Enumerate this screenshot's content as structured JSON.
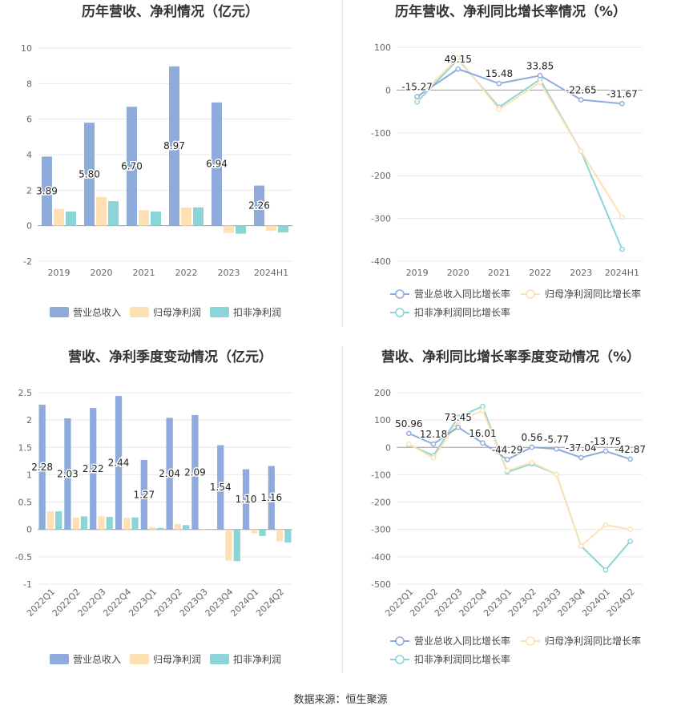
{
  "source_text": "数据来源：恒生聚源",
  "chart_data": [
    {
      "type": "bar",
      "title": "历年营收、净利情况（亿元）",
      "categories": [
        "2019",
        "2020",
        "2021",
        "2022",
        "2023",
        "2024H1"
      ],
      "series": [
        {
          "name": "营业总收入",
          "color": "#8eabdc",
          "values": [
            3.89,
            5.8,
            6.7,
            8.97,
            6.94,
            2.26
          ],
          "labels": [
            "3.89",
            "5.80",
            "6.70",
            "8.97",
            "6.94",
            "2.26"
          ]
        },
        {
          "name": "归母净利润",
          "color": "#fde1b4",
          "values": [
            0.95,
            1.62,
            0.88,
            1.02,
            -0.4,
            -0.28
          ]
        },
        {
          "name": "扣非净利润",
          "color": "#8bd4d8",
          "values": [
            0.8,
            1.38,
            0.8,
            1.03,
            -0.45,
            -0.38
          ]
        }
      ],
      "yticks": [
        "10",
        "8",
        "6",
        "4",
        "2",
        "0",
        "-2"
      ],
      "ylim": [
        -2,
        10
      ],
      "legend_position": "bottom",
      "grid": true
    },
    {
      "type": "line",
      "title": "历年营收、净利同比增长率情况（%）",
      "categories": [
        "2019",
        "2020",
        "2021",
        "2022",
        "2023",
        "2024H1"
      ],
      "series": [
        {
          "name": "营业总收入同比增长率",
          "color": "#8eabdc",
          "values": [
            -15.27,
            49.15,
            15.48,
            33.85,
            -22.65,
            -31.67
          ],
          "labels": [
            "-15.27",
            "49.15",
            "15.48",
            "33.85",
            "-22.65",
            "-31.67"
          ]
        },
        {
          "name": "归母净利润同比增长率",
          "color": "#fde1b4",
          "values": [
            -20,
            75,
            -45,
            18,
            -143,
            -297
          ]
        },
        {
          "name": "扣非净利润同比增长率",
          "color": "#8bd4d8",
          "values": [
            -28,
            72,
            -40,
            25,
            -143,
            -372
          ]
        }
      ],
      "yticks": [
        "100",
        "0",
        "-100",
        "-200",
        "-300",
        "-400"
      ],
      "ylim": [
        -400,
        100
      ],
      "legend_position": "bottom",
      "grid": true
    },
    {
      "type": "bar",
      "title": "营收、净利季度变动情况（亿元）",
      "categories": [
        "2022Q1",
        "2022Q2",
        "2022Q3",
        "2022Q4",
        "2023Q1",
        "2023Q2",
        "2023Q3",
        "2023Q4",
        "2024Q1",
        "2024Q2"
      ],
      "series": [
        {
          "name": "营业总收入",
          "color": "#8eabdc",
          "values": [
            2.28,
            2.03,
            2.22,
            2.44,
            1.27,
            2.04,
            2.09,
            1.54,
            1.1,
            1.16
          ],
          "labels": [
            "2.28",
            "2.03",
            "2.22",
            "2.44",
            "1.27",
            "2.04",
            "2.09",
            "1.54",
            "1.10",
            "1.16"
          ]
        },
        {
          "name": "归母净利润",
          "color": "#fde1b4",
          "values": [
            0.33,
            0.22,
            0.24,
            0.21,
            0.04,
            0.1,
            0.01,
            -0.57,
            -0.07,
            -0.22
          ]
        },
        {
          "name": "扣非净利润",
          "color": "#8bd4d8",
          "values": [
            0.33,
            0.24,
            0.23,
            0.22,
            0.03,
            0.08,
            0.0,
            -0.58,
            -0.12,
            -0.24
          ]
        }
      ],
      "yticks": [
        "2.5",
        "2",
        "1.5",
        "1",
        "0.5",
        "0",
        "-0.5",
        "-1"
      ],
      "ylim": [
        -1,
        2.5
      ],
      "legend_position": "bottom",
      "grid": true
    },
    {
      "type": "line",
      "title": "营收、净利同比增长率季度变动情况（%）",
      "categories": [
        "2022Q1",
        "2022Q2",
        "2022Q3",
        "2022Q4",
        "2023Q1",
        "2023Q2",
        "2023Q3",
        "2023Q4",
        "2024Q1",
        "2024Q2"
      ],
      "series": [
        {
          "name": "营业总收入同比增长率",
          "color": "#8eabdc",
          "values": [
            50.96,
            12.18,
            73.45,
            16.01,
            -44.29,
            0.56,
            -5.77,
            -37.04,
            -13.75,
            -42.87
          ],
          "labels": [
            "50.96",
            "12.18",
            "73.45",
            "16.01",
            "-44.29",
            "0.56",
            "-5.77",
            "-37.04",
            "-13.75",
            "-42.87"
          ]
        },
        {
          "name": "归母净利润同比增长率",
          "color": "#fde1b4",
          "values": [
            12,
            -38,
            95,
            135,
            -85,
            -55,
            -98,
            -360,
            -283,
            -300
          ]
        },
        {
          "name": "扣非净利润同比增长率",
          "color": "#8bd4d8",
          "values": [
            10,
            -30,
            110,
            150,
            -90,
            -60,
            -98,
            -360,
            -448,
            -343
          ]
        }
      ],
      "yticks": [
        "200",
        "100",
        "0",
        "-100",
        "-200",
        "-300",
        "-400",
        "-500"
      ],
      "ylim": [
        -500,
        200
      ],
      "legend_position": "bottom",
      "grid": true
    }
  ]
}
